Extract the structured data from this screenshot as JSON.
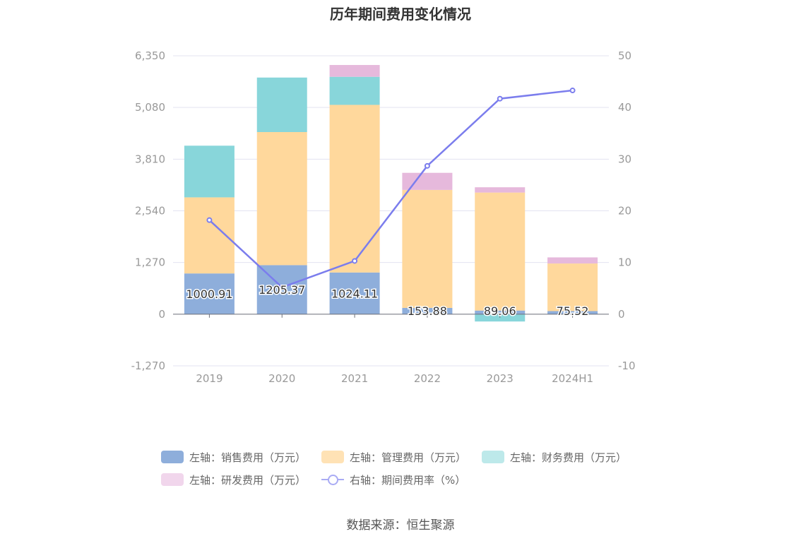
{
  "title": "历年期间费用变化情况",
  "source": "数据来源：恒生聚源",
  "colors": {
    "sales": "#8eaedb",
    "admin": "#ffd89c",
    "finance": "#88d6da",
    "rnd": "#e6b9dc",
    "ratio": "#7b7ded",
    "grid": "#e3e3f0",
    "axis_text": "#999999"
  },
  "legend": [
    {
      "label": "左轴：销售费用（万元）",
      "color": "#8eaedb",
      "kind": "bar"
    },
    {
      "label": "左轴：管理费用（万元）",
      "color": "#ffe2b5",
      "kind": "bar"
    },
    {
      "label": "左轴：财务费用（万元）",
      "color": "#bde9ea",
      "kind": "bar"
    },
    {
      "label": "左轴：研发费用（万元）",
      "color": "#f1d6ec",
      "kind": "bar"
    },
    {
      "label": "右轴：期间费用率（%）",
      "color": "#a9abf4",
      "kind": "line"
    }
  ],
  "chart_data": {
    "type": "bar",
    "stacked": true,
    "categories": [
      "2019",
      "2020",
      "2021",
      "2022",
      "2023",
      "2024H1"
    ],
    "left_axis": {
      "ticks": [
        "6,350",
        "5,080",
        "3,810",
        "2,540",
        "1,270",
        "0",
        "-1,270"
      ],
      "ylim": [
        -1270,
        6350
      ]
    },
    "right_axis": {
      "ticks": [
        "50",
        "40",
        "30",
        "20",
        "10",
        "0",
        "-10"
      ],
      "ylim": [
        -10,
        50
      ]
    },
    "series": [
      {
        "name": "左轴：销售费用（万元）",
        "axis": "left",
        "values": [
          1000.91,
          1205.37,
          1024.11,
          153.88,
          89.06,
          75.52
        ],
        "labels": [
          "1000.91",
          "1205.37",
          "1024.11",
          "153.88",
          "89.06",
          "75.52"
        ]
      },
      {
        "name": "左轴：管理费用（万元）",
        "axis": "left",
        "values": [
          1870,
          3270,
          4120,
          2900,
          2900,
          1170
        ]
      },
      {
        "name": "左轴：财务费用（万元）",
        "axis": "left",
        "values": [
          1270,
          1340,
          690,
          0,
          -180,
          0
        ]
      },
      {
        "name": "左轴：研发费用（万元）",
        "axis": "left",
        "values": [
          0,
          0,
          290,
          420,
          130,
          150
        ]
      },
      {
        "name": "右轴：期间费用率（%）",
        "axis": "right",
        "type": "line",
        "values": [
          18.2,
          5.2,
          10.3,
          28.7,
          41.7,
          43.3
        ]
      }
    ],
    "legend_position": "bottom",
    "grid": true
  }
}
